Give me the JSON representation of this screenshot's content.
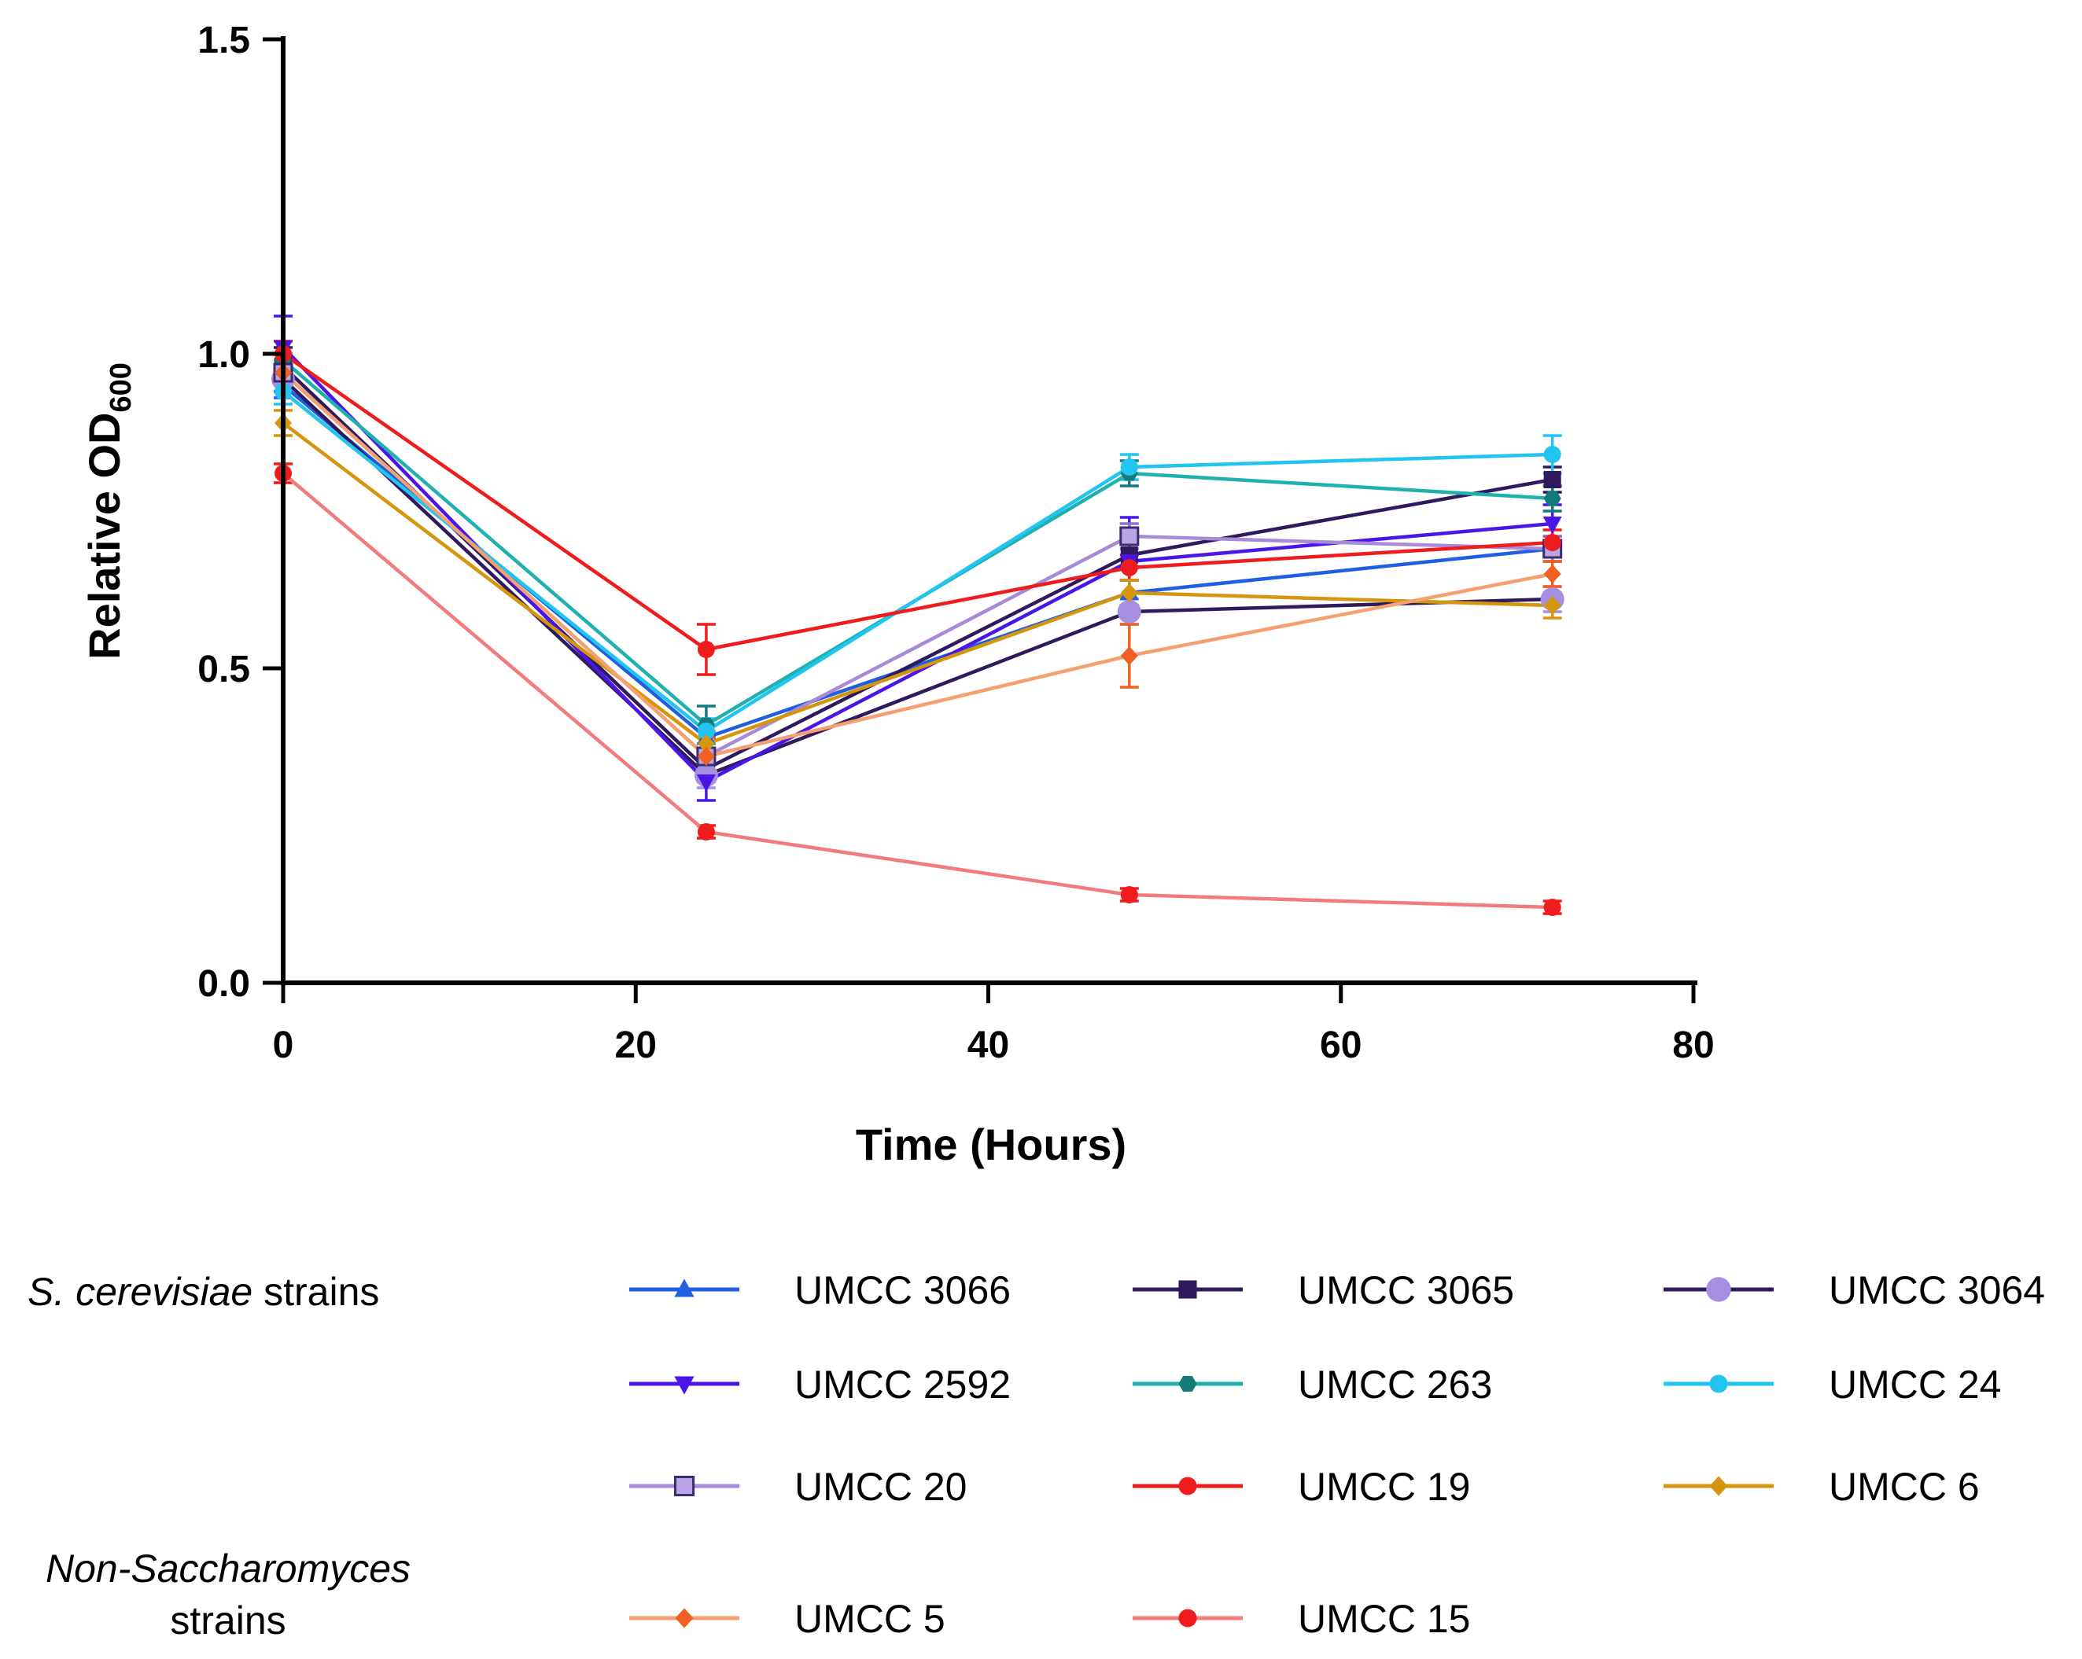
{
  "chart_data": {
    "type": "line",
    "title": "",
    "xlabel": "Time (Hours)",
    "ylabel_main": "Relative OD",
    "ylabel_sub": "600",
    "xlim": [
      0,
      80
    ],
    "ylim": [
      0,
      1.5
    ],
    "x_ticks": [
      0,
      20,
      40,
      60,
      80
    ],
    "x_tick_labels": [
      "0",
      "20",
      "40",
      "60",
      "80"
    ],
    "y_ticks": [
      0,
      0.5,
      1.0,
      1.5
    ],
    "y_tick_labels": [
      "0.0",
      "0.5",
      "1.0",
      "1.5"
    ],
    "grid": false,
    "legend_position": "bottom",
    "legend_groups": [
      {
        "label_italic": "S. cerevisiae",
        "label_rest": " strains"
      },
      {
        "label_line1": "Non-Saccharomyces",
        "label_line2": "strains"
      }
    ],
    "x": [
      0,
      24,
      48,
      72
    ],
    "series": [
      {
        "name": "UMCC 3066",
        "color": "#1f5fe0",
        "marker": "triangle-up",
        "group": 0,
        "values": [
          0.95,
          0.39,
          0.62,
          0.69
        ],
        "errors": [
          0.02,
          0.02,
          0.02,
          0.02
        ]
      },
      {
        "name": "UMCC 3065",
        "color": "#2e1a5c",
        "marker": "square",
        "group": 0,
        "values": [
          0.98,
          0.34,
          0.68,
          0.8
        ],
        "errors": [
          0.03,
          0.02,
          0.02,
          0.02
        ]
      },
      {
        "name": "UMCC 3064",
        "color": "#2e1a5c",
        "marker": "circle-big",
        "marker_color": "#a68ee0",
        "group": 0,
        "values": [
          0.96,
          0.33,
          0.59,
          0.61
        ],
        "errors": [
          0.02,
          0.02,
          0.02,
          0.02
        ]
      },
      {
        "name": "UMCC 2592",
        "color": "#4a16e8",
        "marker": "triangle-down",
        "group": 0,
        "values": [
          1.01,
          0.32,
          0.67,
          0.73
        ],
        "errors": [
          0.05,
          0.03,
          0.07,
          0.03
        ]
      },
      {
        "name": "UMCC 263",
        "color": "#20b0b0",
        "marker": "hexagon",
        "marker_color": "#127a7a",
        "group": 0,
        "values": [
          0.99,
          0.41,
          0.81,
          0.77
        ],
        "errors": [
          0.03,
          0.03,
          0.02,
          0.02
        ]
      },
      {
        "name": "UMCC 24",
        "color": "#22c4f0",
        "marker": "circle",
        "group": 0,
        "values": [
          0.94,
          0.4,
          0.82,
          0.84
        ],
        "errors": [
          0.02,
          0.02,
          0.02,
          0.03
        ]
      },
      {
        "name": "UMCC 20",
        "color": "#a98ad8",
        "marker": "square-open",
        "marker_color": "#9070c8",
        "group": 0,
        "values": [
          0.97,
          0.36,
          0.71,
          0.69
        ],
        "errors": [
          0.03,
          0.03,
          0.02,
          0.02
        ]
      },
      {
        "name": "UMCC 19",
        "color": "#ee1c1c",
        "marker": "circle",
        "group": 0,
        "values": [
          1.0,
          0.53,
          0.66,
          0.7
        ],
        "errors": [
          0.02,
          0.04,
          0.02,
          0.02
        ]
      },
      {
        "name": "UMCC 6",
        "color": "#d4960e",
        "marker": "diamond",
        "group": 0,
        "values": [
          0.89,
          0.38,
          0.62,
          0.6
        ],
        "errors": [
          0.02,
          0.02,
          0.02,
          0.02
        ]
      },
      {
        "name": "UMCC 5",
        "color": "#f5a070",
        "marker": "diamond",
        "marker_color": "#f06020",
        "group": 1,
        "values": [
          0.97,
          0.36,
          0.52,
          0.65
        ],
        "errors": [
          0.02,
          0.03,
          0.05,
          0.02
        ]
      },
      {
        "name": "UMCC 15",
        "color": "#f27c7c",
        "marker": "circle",
        "marker_color": "#ee1c1c",
        "group": 1,
        "values": [
          0.81,
          0.24,
          0.14,
          0.12
        ],
        "errors": [
          0.015,
          0.01,
          0.01,
          0.01
        ]
      }
    ]
  }
}
